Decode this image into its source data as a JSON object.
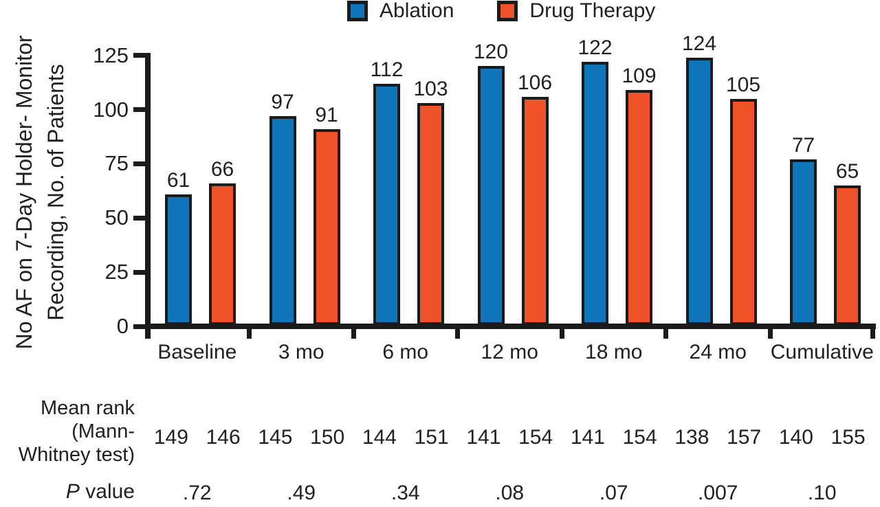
{
  "chart_data": {
    "type": "bar",
    "title": "",
    "categories": [
      "Baseline",
      "3 mo",
      "6 mo",
      "12 mo",
      "18 mo",
      "24 mo",
      "Cumulative"
    ],
    "series": [
      {
        "name": "Ablation",
        "color": "#1175BA",
        "values": [
          61,
          97,
          112,
          120,
          122,
          124,
          77
        ]
      },
      {
        "name": "Drug Therapy",
        "color": "#F0522A",
        "values": [
          66,
          91,
          103,
          106,
          109,
          105,
          65
        ]
      }
    ],
    "ylabel_lines": [
      "No AF on 7-Day Holder- Monitor",
      "Recording, No. of Patients"
    ],
    "xlabel": "",
    "yticks": [
      0,
      25,
      50,
      75,
      100,
      125
    ],
    "ylim": [
      0,
      125
    ],
    "grid": false,
    "legend_position": "top",
    "colors": {
      "axis": "#1b1b1b",
      "text": "#231f20"
    },
    "annotations": {
      "mean_rank_label_lines": [
        "Mean rank",
        "(Mann-",
        "Whitney test)"
      ],
      "mean_rank_pairs": [
        [
          149,
          146
        ],
        [
          145,
          150
        ],
        [
          144,
          151
        ],
        [
          141,
          154
        ],
        [
          141,
          154
        ],
        [
          138,
          157
        ],
        [
          140,
          155
        ]
      ],
      "p_value_label": {
        "italic": "P",
        "rest": " value"
      },
      "p_values": [
        ".72",
        ".49",
        ".34",
        ".08",
        ".07",
        ".007",
        ".10"
      ]
    }
  }
}
